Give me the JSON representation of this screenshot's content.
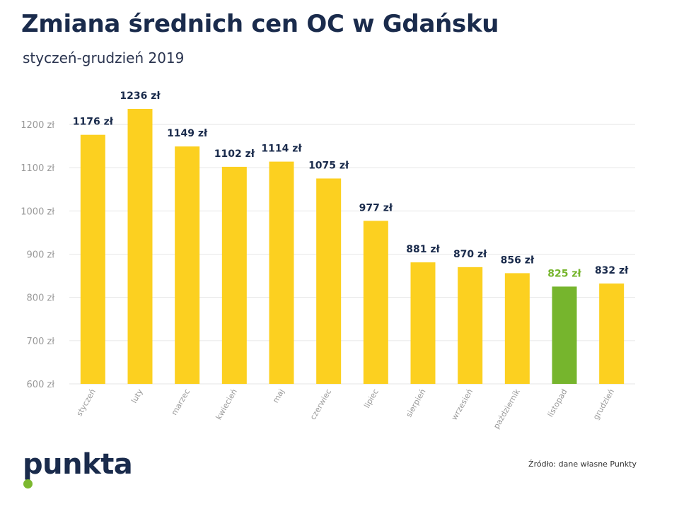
{
  "title": "Zmiana średnich cen OC w Gdańsku",
  "subtitle": "styczeń-grudzień 2019",
  "brand": {
    "logo_text": "punkta",
    "text_color": "#1a2b4c",
    "dot_color": "#7cb82f"
  },
  "source": "Źródło: dane własne Punkty",
  "chart_data": {
    "type": "bar",
    "categories": [
      "styczeń",
      "luty",
      "marzec",
      "kwiecień",
      "maj",
      "czerwiec",
      "lipiec",
      "sierpień",
      "wrzesień",
      "październik",
      "listopad",
      "grudzień"
    ],
    "values": [
      1176,
      1236,
      1149,
      1102,
      1114,
      1075,
      977,
      881,
      870,
      856,
      825,
      832
    ],
    "data_labels": [
      "1176 zł",
      "1236 zł",
      "1149 zł",
      "1102 zł",
      "1114 zł",
      "1075 zł",
      "977 zł",
      "881 zł",
      "870 zł",
      "856 zł",
      "825 zł",
      "832 zł"
    ],
    "y_ticks": [
      600,
      700,
      800,
      900,
      1000,
      1100,
      1200
    ],
    "y_tick_labels": [
      "600 zł",
      "700 zł",
      "800 zł",
      "900 zł",
      "1000 zł",
      "1100 zł",
      "1200 zł"
    ],
    "ylim": [
      600,
      1200
    ],
    "grid": true,
    "highlight_index": 10,
    "colors": {
      "bar": "#fcd020",
      "highlight": "#76b52d",
      "label": "#1a2b4c",
      "highlight_label": "#76b52d",
      "grid": "#e6e6e6",
      "tick": "#9a9a9a"
    }
  }
}
